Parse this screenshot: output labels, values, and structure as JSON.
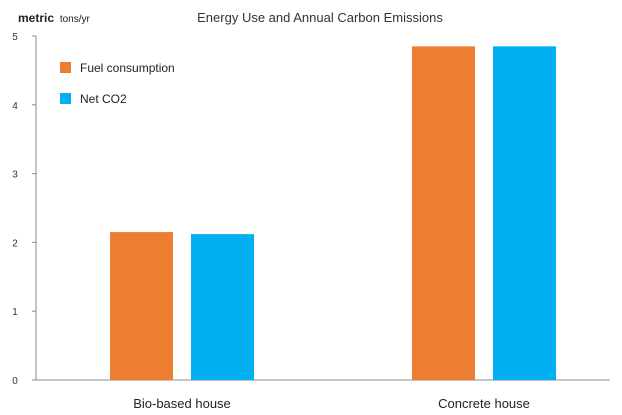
{
  "chart_data": {
    "type": "bar",
    "title": "Energy Use and Annual Carbon Emissions",
    "ylabel": "metric tons/yr",
    "ylabel_main": "metric",
    "ylabel_sub": "tons/yr",
    "xlabel": "",
    "categories": [
      "Bio-based house",
      "Concrete house"
    ],
    "series": [
      {
        "name": "Fuel consumption",
        "color": "#ED7D31",
        "values": [
          2.15,
          4.85
        ]
      },
      {
        "name": "Net CO2",
        "color": "#00B0F0",
        "values": [
          2.12,
          4.85
        ]
      }
    ],
    "ylim": [
      0,
      5
    ],
    "yticks": [
      0,
      1,
      2,
      3,
      4,
      5
    ],
    "grid": false,
    "legend": "top-left"
  }
}
